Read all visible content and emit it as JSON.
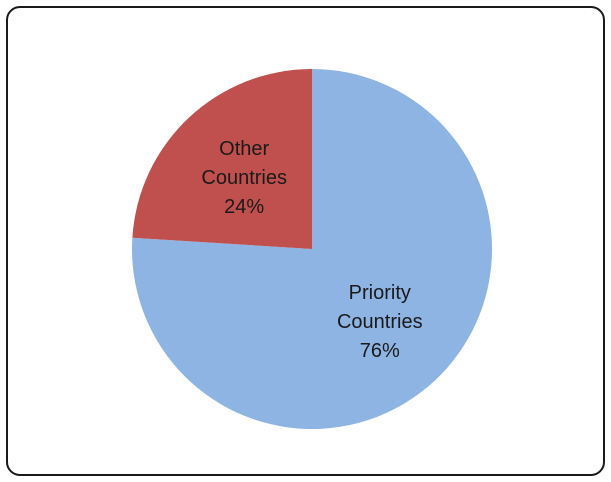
{
  "chart_data": {
    "type": "pie",
    "slices": [
      {
        "label_lines": [
          "Priority",
          "Countries"
        ],
        "value": 76,
        "value_label": "76%",
        "color": "#8EB4E3"
      },
      {
        "label_lines": [
          "Other",
          "Countries"
        ],
        "value": 24,
        "value_label": "24%",
        "color": "#C0504D"
      }
    ],
    "start_angle_deg": 0,
    "direction": "clockwise",
    "legend": "none"
  }
}
